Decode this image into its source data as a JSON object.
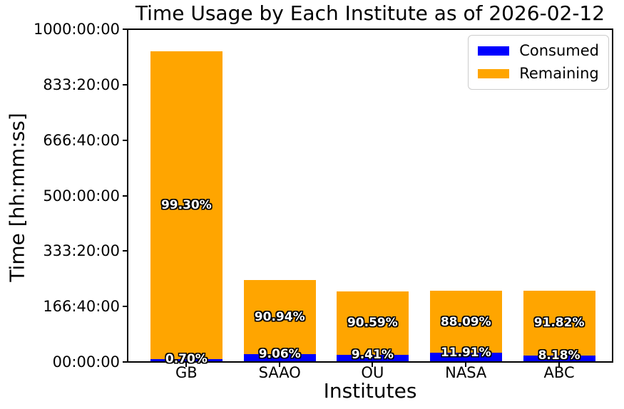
{
  "figure": {
    "background": "#ffffff"
  },
  "chart_data": {
    "type": "bar",
    "stacked": true,
    "title": "Time Usage by Each Institute as of 2026-02-12",
    "xlabel": "Institutes",
    "ylabel": "Time [hh:mm:ss]",
    "categories": [
      "GB",
      "SAAO",
      "OU",
      "NASA",
      "ABC"
    ],
    "series": [
      {
        "name": "Consumed",
        "color": "#0000ff",
        "values_hours": [
          6.55,
          22.2,
          19.86,
          25.37,
          17.42
        ],
        "percent_labels": [
          "0.70%",
          "9.06%",
          "9.41%",
          "11.91%",
          "8.18%"
        ]
      },
      {
        "name": "Remaining",
        "color": "#ffa500",
        "values_hours": [
          929.45,
          222.8,
          191.14,
          187.63,
          195.58
        ],
        "percent_labels": [
          "99.30%",
          "90.94%",
          "90.59%",
          "88.09%",
          "91.82%"
        ]
      }
    ],
    "totals_hours": [
      936,
      245,
      211,
      213,
      213
    ],
    "ylim_hours": [
      0,
      1000
    ],
    "yticks": [
      "00:00:00",
      "166:40:00",
      "333:20:00",
      "500:00:00",
      "666:40:00",
      "833:20:00",
      "1000:00:00"
    ],
    "legend": {
      "position": "upper right",
      "entries": [
        "Consumed",
        "Remaining"
      ]
    },
    "grid": false,
    "bar_label_style": {
      "color": "#ffffff",
      "outline": "#000000",
      "bold": true
    }
  }
}
